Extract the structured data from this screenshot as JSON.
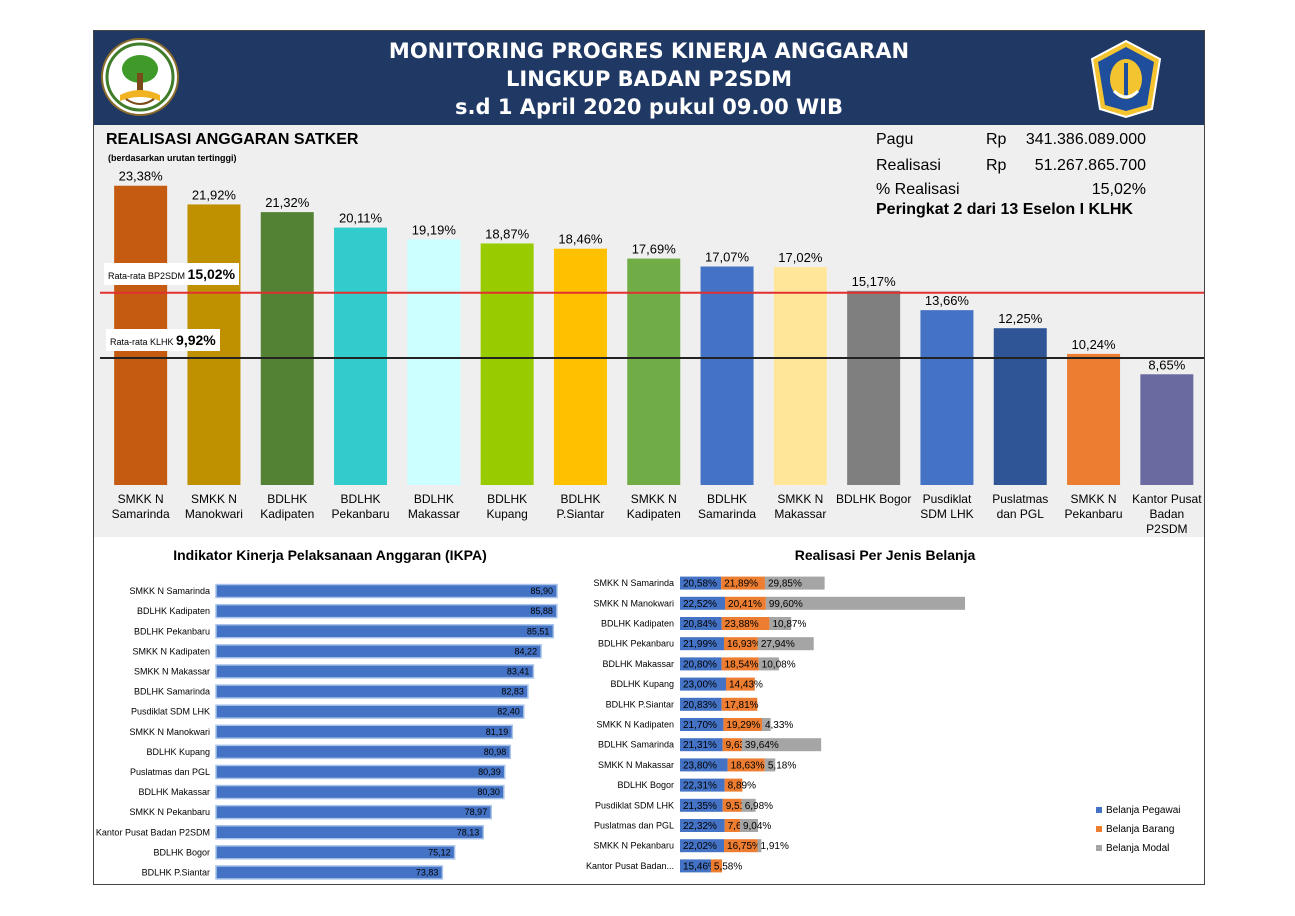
{
  "header": {
    "title_line1": "MONITORING PROGRES KINERJA ANGGARAN",
    "title_line2": "LINGKUP BADAN P2SDM",
    "title_line3": "s.d 1 April 2020 pukul 09.00 WIB"
  },
  "summary": {
    "section_title": "REALISASI ANGGARAN SATKER",
    "section_subtitle": "(berdasarkan urutan tertinggi)",
    "pagu_label": "Pagu",
    "pagu_currency": "Rp",
    "pagu_value": "341.386.089.000",
    "realisasi_label": "Realisasi",
    "realisasi_currency": "Rp",
    "realisasi_value": "51.267.865.700",
    "persen_label": "% Realisasi",
    "persen_value": "15,02%",
    "rank": "Peringkat 2 dari 13 Eselon I KLHK",
    "avg_bp2sdm_label": "Rata-rata BP2SDM",
    "avg_bp2sdm_value": "15,02%",
    "avg_klhk_label": "Rata-rata KLHK",
    "avg_klhk_value": "9,92%"
  },
  "colors": {
    "header_bg": "#1f3864",
    "avg_bp2sdm_line": "#e03030",
    "avg_klhk_line": "#222222",
    "pegawai": "#4472c4",
    "barang": "#ed7d31",
    "modal": "#a5a5a5"
  },
  "chart_data": [
    {
      "type": "bar",
      "title": "REALISASI ANGGARAN SATKER",
      "categories": [
        "SMKK N Samarinda",
        "SMKK N Manokwari",
        "BDLHK Kadipaten",
        "BDLHK Pekanbaru",
        "BDLHK Makassar",
        "BDLHK Kupang",
        "BDLHK P.Siantar",
        "SMKK N Kadipaten",
        "BDLHK Samarinda",
        "SMKK N Makassar",
        "BDLHK Bogor",
        "Pusdiklat SDM LHK",
        "Puslatmas dan PGL",
        "SMKK N Pekanbaru",
        "Kantor Pusat Badan P2SDM"
      ],
      "values": [
        23.38,
        21.92,
        21.32,
        20.11,
        19.19,
        18.87,
        18.46,
        17.69,
        17.07,
        17.02,
        15.17,
        13.66,
        12.25,
        10.24,
        8.65
      ],
      "value_labels": [
        "23,38%",
        "21,92%",
        "21,32%",
        "20,11%",
        "19,19%",
        "18,87%",
        "18,46%",
        "17,69%",
        "17,07%",
        "17,02%",
        "15,17%",
        "13,66%",
        "12,25%",
        "10,24%",
        "8,65%"
      ],
      "colors": [
        "#c55a11",
        "#bf9000",
        "#548235",
        "#33cccc",
        "#ccffff",
        "#99cc00",
        "#ffc000",
        "#70ad47",
        "#4472c4",
        "#ffe699",
        "#7f7f7f",
        "#4472c4",
        "#2f5597",
        "#ed7d31",
        "#6a6aa0"
      ],
      "reference_lines": [
        15.02,
        9.92
      ],
      "ylim": [
        0,
        25
      ],
      "grid": false
    },
    {
      "type": "bar",
      "orientation": "horizontal",
      "title": "Indikator Kinerja Pelaksanaan Anggaran (IKPA)",
      "categories": [
        "SMKK N Samarinda",
        "BDLHK Kadipaten",
        "BDLHK Pekanbaru",
        "SMKK N Kadipaten",
        "SMKK N Makassar",
        "BDLHK Samarinda",
        "Pusdiklat SDM LHK",
        "SMKK N Manokwari",
        "BDLHK Kupang",
        "Puslatmas dan PGL",
        "BDLHK Makassar",
        "SMKK N Pekanbaru",
        "Kantor Pusat Badan P2SDM",
        "BDLHK Bogor",
        "BDLHK P.Siantar"
      ],
      "values": [
        85.9,
        85.88,
        85.51,
        84.22,
        83.41,
        82.83,
        82.4,
        81.19,
        80.98,
        80.39,
        80.3,
        78.97,
        78.13,
        75.12,
        73.83
      ],
      "value_labels": [
        "85,90",
        "85,88",
        "85,51",
        "84,22",
        "83,41",
        "82,83",
        "82,40",
        "81,19",
        "80,98",
        "80,39",
        "80,30",
        "78,97",
        "78,13",
        "75,12",
        "73,83"
      ],
      "xlim": [
        50,
        90
      ],
      "grid": false
    },
    {
      "type": "bar",
      "orientation": "horizontal",
      "stacked": true,
      "title": "Realisasi Per Jenis Belanja",
      "categories": [
        "SMKK N Samarinda",
        "SMKK N Manokwari",
        "BDLHK Kadipaten",
        "BDLHK Pekanbaru",
        "BDLHK Makassar",
        "BDLHK Kupang",
        "BDLHK P.Siantar",
        "SMKK N Kadipaten",
        "BDLHK Samarinda",
        "SMKK N Makassar",
        "BDLHK Bogor",
        "Pusdiklat SDM LHK",
        "Puslatmas dan PGL",
        "SMKK N Pekanbaru",
        "Kantor Pusat Badan..."
      ],
      "series": [
        {
          "name": "Belanja Pegawai",
          "values": [
            20.58,
            22.52,
            20.84,
            21.99,
            20.8,
            23.0,
            20.83,
            21.7,
            21.31,
            23.8,
            22.31,
            21.35,
            22.32,
            22.02,
            15.46
          ],
          "labels": [
            "20,58%",
            "22,52%",
            "20,84%",
            "21,99%",
            "20,80%",
            "23,00%",
            "20,83%",
            "21,70%",
            "21,31%",
            "23,80%",
            "22,31%",
            "21,35%",
            "22,32%",
            "22,02%",
            "15,46%"
          ]
        },
        {
          "name": "Belanja Barang",
          "values": [
            21.89,
            20.41,
            23.88,
            16.93,
            18.54,
            14.43,
            17.81,
            19.29,
            9.63,
            18.63,
            8.89,
            9.51,
            7.66,
            16.75,
            5.58
          ],
          "labels": [
            "21,89%",
            "20,41%",
            "23,88%",
            "16,93%",
            "18,54%",
            "14,43%",
            "17,81%",
            "19,29%",
            "9,63%",
            "18,63%",
            "8,89%",
            "9,51%",
            "7,66%",
            "16,75%",
            "5,58%"
          ]
        },
        {
          "name": "Belanja Modal",
          "values": [
            29.85,
            99.6,
            10.87,
            27.94,
            10.08,
            0,
            0,
            4.33,
            39.64,
            5.18,
            0,
            6.98,
            9.04,
            1.91,
            0
          ],
          "labels": [
            "29,85%",
            "99,60%",
            "10,87%",
            "27,94%",
            "10,08%",
            "",
            "",
            "4,33%",
            "39,64%",
            "5,18%",
            "",
            "6,98%",
            "9,04%",
            "1,91%",
            ""
          ]
        }
      ],
      "legend_position": "right",
      "grid": false
    }
  ]
}
